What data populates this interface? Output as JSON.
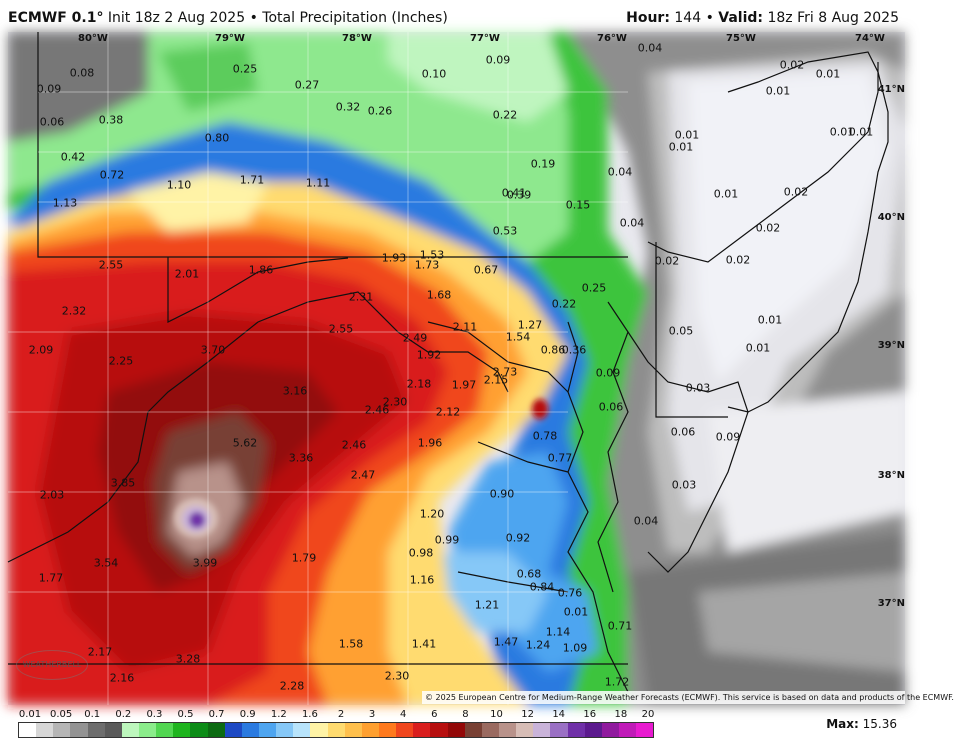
{
  "header": {
    "model": "ECMWF 0.1°",
    "init": "Init 18z 2 Aug 2025",
    "bullet": "•",
    "product": "Total Precipitation (Inches)",
    "hour_label": "Hour:",
    "hour_value": "144",
    "valid_label": "Valid:",
    "valid_value": "18z Fri 8 Aug 2025"
  },
  "map": {
    "lon_labels": [
      "80°W",
      "79°W",
      "78°W",
      "77°W",
      "76°W",
      "75°W",
      "74°W"
    ],
    "lat_labels": [
      "41°N",
      "40°N",
      "39°N",
      "38°N",
      "37°N"
    ],
    "values": [
      "0.08",
      "0.09",
      "0.06",
      "0.38",
      "0.42",
      "0.72",
      "1.13",
      "0.25",
      "0.27",
      "0.32",
      "0.26",
      "0.10",
      "0.09",
      "0.22",
      "0.04",
      "0.02",
      "0.01",
      "0.01",
      "0.80",
      "1.10",
      "1.71",
      "1.11",
      "0.19",
      "0.01",
      "0.01",
      "0.01",
      "0.01",
      "0.04",
      "0.41",
      "0.39",
      "0.15",
      "0.01",
      "0.02",
      "0.53",
      "0.04",
      "0.02",
      "2.55",
      "2.01",
      "1.86",
      "1.93",
      "1.53",
      "1.73",
      "0.67",
      "0.02",
      "0.02",
      "0.25",
      "0.22",
      "2.32",
      "2.31",
      "1.68",
      "2.55",
      "2.11",
      "1.27",
      "0.01",
      "0.05",
      "2.09",
      "2.25",
      "3.70",
      "2.49",
      "1.92",
      "1.54",
      "0.86",
      "0.36",
      "0.01",
      "2.18",
      "1.97",
      "2.73",
      "0.09",
      "0.03",
      "3.16",
      "2.30",
      "2.46",
      "2.12",
      "2.15",
      "0.06",
      "5.62",
      "1.96",
      "0.78",
      "0.06",
      "0.09",
      "3.36",
      "2.46",
      "0.77",
      "2.03",
      "3.85",
      "2.47",
      "0.90",
      "0.03",
      "1.20",
      "0.04",
      "0.99",
      "0.92",
      "3.99",
      "0.98",
      "1.77",
      "3.54",
      "1.79",
      "1.16",
      "0.68",
      "0.84",
      "0.76",
      "1.21",
      "0.01",
      "0.71",
      "1.14",
      "1.47",
      "1.24",
      "1.09",
      "1.58",
      "1.41",
      "2.17",
      "3.28",
      "2.30",
      "1.72",
      "2.16",
      "2.28"
    ],
    "copyright": "© 2025 European Centre for Medium-Range Weather Forecasts (ECMWF). This service is based on data and products of the ECMWF.",
    "logo_text": "WEATHERBELL"
  },
  "legend": {
    "ticks": [
      "0.01",
      "0.05",
      "0.1",
      "0.2",
      "0.3",
      "0.5",
      "0.7",
      "0.9",
      "1.2",
      "1.6",
      "2",
      "3",
      "4",
      "6",
      "8",
      "10",
      "12",
      "14",
      "16",
      "18",
      "20"
    ],
    "colors": [
      "#ffffff",
      "#d7d7d7",
      "#b5b5b5",
      "#939393",
      "#6d6d6d",
      "#5a5a5a",
      "#bdf7bd",
      "#8bec8b",
      "#52d652",
      "#1eb41e",
      "#0c8c17",
      "#0c6b12",
      "#1d49c4",
      "#2a7ae0",
      "#4ea5f0",
      "#86c8f7",
      "#b8e4fb",
      "#fff3a6",
      "#ffdb70",
      "#ffc04d",
      "#ffa030",
      "#ff7a1e",
      "#f0461e",
      "#d91e1e",
      "#b70f0f",
      "#930808",
      "#784034",
      "#9a6a60",
      "#b8928a",
      "#d7bdb6",
      "#c9b3d9",
      "#9a70c4",
      "#7030a8",
      "#5c1a8e",
      "#901a9e",
      "#c01ab8",
      "#e81ad0"
    ],
    "max_label": "Max:",
    "max_value": "15.36"
  }
}
